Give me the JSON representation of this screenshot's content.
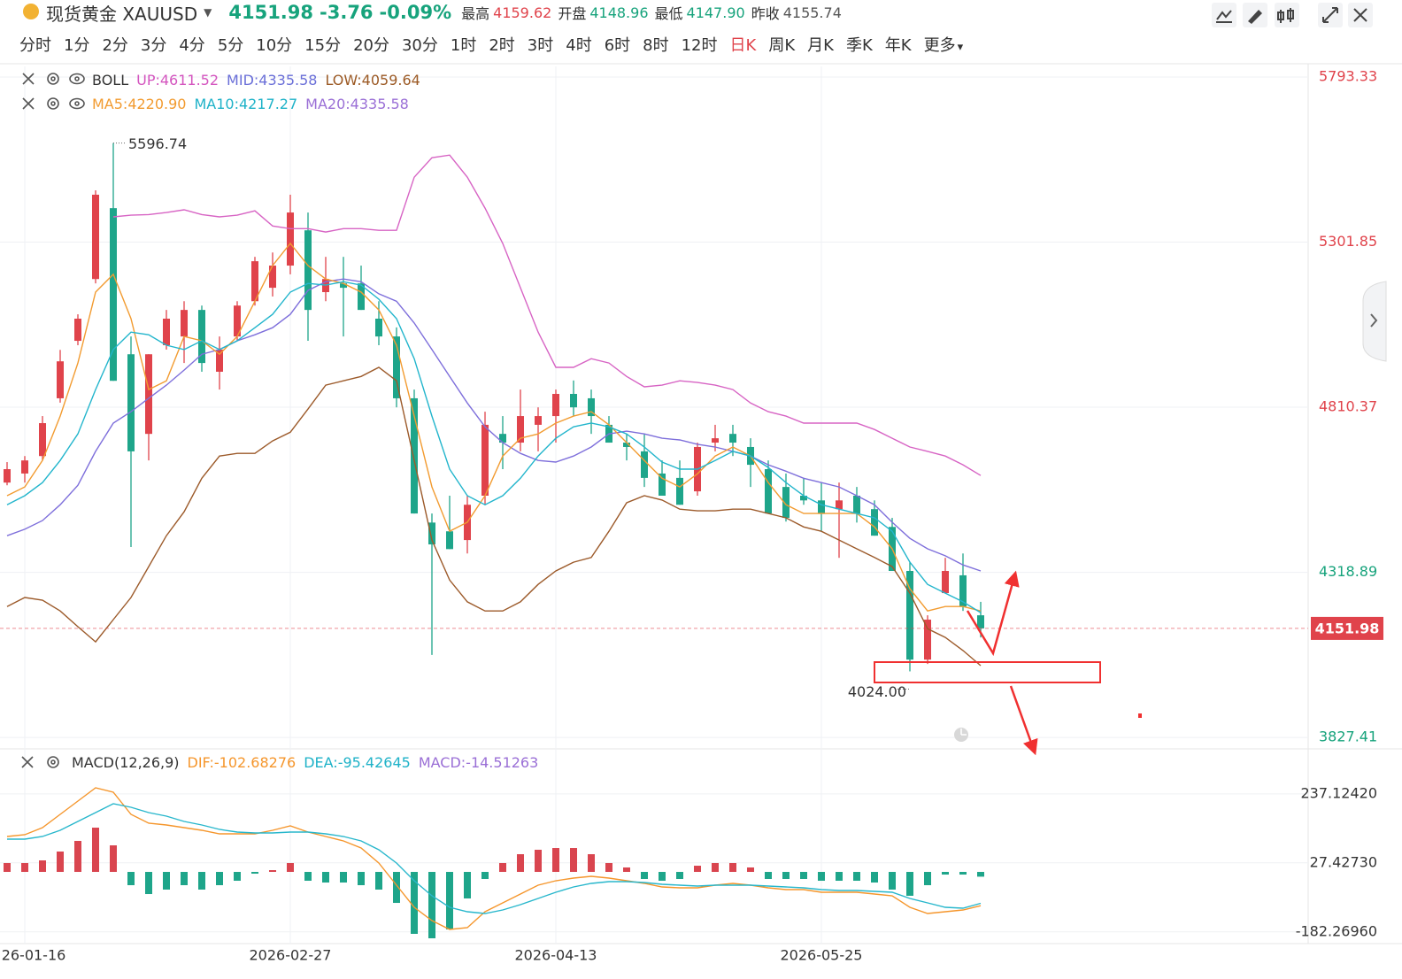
{
  "header": {
    "name": "现货黄金 XAUUSD",
    "price": "4151.98",
    "change": "-3.76",
    "change_pct": "-0.09%",
    "price_color": "#17a37c",
    "stats": [
      {
        "label": "最高",
        "value": "4159.62",
        "color": "#e0434b"
      },
      {
        "label": "开盘",
        "value": "4148.96",
        "color": "#17a37c"
      },
      {
        "label": "最低",
        "value": "4147.90",
        "color": "#17a37c"
      },
      {
        "label": "昨收",
        "value": "4155.74",
        "color": "#555555"
      }
    ]
  },
  "tabs": [
    "分时",
    "1分",
    "2分",
    "3分",
    "4分",
    "5分",
    "10分",
    "15分",
    "20分",
    "30分",
    "1时",
    "2时",
    "3时",
    "4时",
    "6时",
    "8时",
    "12时",
    "日K",
    "周K",
    "月K",
    "季K",
    "年K",
    "更多"
  ],
  "active_tab": 17,
  "active_color": "#e0434b",
  "chart_data": [
    {
      "type": "candlestick",
      "categories": [
        null,
        "26-01-16",
        null,
        null,
        null,
        null,
        null,
        null,
        null,
        null,
        null,
        null,
        null,
        null,
        null,
        null,
        "2026-02-27",
        null,
        null,
        null,
        null,
        null,
        null,
        null,
        null,
        null,
        null,
        null,
        null,
        null,
        null,
        "2026-04-13",
        null,
        null,
        null,
        null,
        null,
        null,
        null,
        null,
        null,
        null,
        null,
        null,
        null,
        null,
        "2026-05-25",
        null,
        null,
        null,
        null,
        null,
        null,
        null,
        null,
        null
      ],
      "open": [
        4586,
        4613,
        4665,
        4837,
        5008,
        5192,
        5403,
        4968,
        4731,
        4995,
        5021,
        5100,
        4916,
        5021,
        5126,
        5166,
        5232,
        5337,
        5153,
        5179,
        5179,
        5074,
        5021,
        4837,
        4467,
        4441,
        4415,
        4547,
        4731,
        4705,
        4758,
        4784,
        4850,
        4837,
        4758,
        4705,
        4679,
        4613,
        4600,
        4560,
        4705,
        4731,
        4692,
        4626,
        4573,
        4547,
        4533,
        4507,
        4547,
        4507,
        4454,
        4323,
        4059,
        4257,
        4310,
        4191
      ],
      "high": [
        4647,
        4665,
        4784,
        4981,
        5087,
        5456,
        5596.74,
        5021,
        4968,
        5100,
        5126,
        5113,
        5021,
        5126,
        5258,
        5271,
        5443,
        5390,
        5258,
        5258,
        5232,
        5126,
        5048,
        4863,
        4494,
        4547,
        4547,
        4797,
        4784,
        4863,
        4810,
        4863,
        4890,
        4863,
        4784,
        4731,
        4731,
        4652,
        4652,
        4705,
        4758,
        4758,
        4718,
        4652,
        4613,
        4600,
        4586,
        4586,
        4573,
        4533,
        4481,
        4349,
        4191,
        4362,
        4375,
        4231
      ],
      "low": [
        4578,
        4586,
        4652,
        4824,
        4995,
        5179,
        4889,
        4394,
        4652,
        4982,
        4942,
        4916,
        4863,
        5008,
        5113,
        5140,
        5206,
        5008,
        5126,
        5021,
        5100,
        4995,
        4810,
        4494,
        4073,
        4388,
        4375,
        4520,
        4626,
        4679,
        4679,
        4705,
        4784,
        4731,
        4705,
        4652,
        4573,
        4547,
        4520,
        4547,
        4679,
        4665,
        4573,
        4494,
        4470,
        4520,
        4441,
        4362,
        4467,
        4428,
        4323,
        4024,
        4046,
        4257,
        4204,
        4125
      ],
      "close": [
        4626,
        4652,
        4763,
        4947,
        5074,
        5443,
        4889,
        4679,
        4968,
        5074,
        5100,
        4942,
        4982,
        5113,
        5245,
        5232,
        5390,
        5100,
        5192,
        5166,
        5100,
        5021,
        4837,
        4494,
        4402,
        4388,
        4520,
        4758,
        4705,
        4784,
        4784,
        4850,
        4810,
        4784,
        4705,
        4692,
        4600,
        4547,
        4520,
        4692,
        4718,
        4705,
        4639,
        4494,
        4481,
        4533,
        4494,
        4533,
        4494,
        4428,
        4323,
        4059,
        4178,
        4323,
        4217,
        4152
      ],
      "up_color": "#e0434b",
      "down_color": "#1ea58a",
      "series": [
        {
          "name": "UP",
          "color": "#d764c4",
          "values": [
            null,
            null,
            null,
            null,
            null,
            null,
            5377,
            5382,
            5384,
            5390,
            5398,
            5384,
            5377,
            5382,
            5395,
            5350,
            5342,
            5342,
            5332,
            5342,
            5342,
            5337,
            5337,
            5495,
            5553,
            5561,
            5495,
            5403,
            5298,
            5166,
            5034,
            4929,
            4929,
            4955,
            4942,
            4902,
            4871,
            4876,
            4889,
            4884,
            4876,
            4863,
            4823,
            4797,
            4784,
            4763,
            4763,
            4763,
            4763,
            4744,
            4718,
            4692,
            4679,
            4665,
            4639,
            4607
          ]
        },
        {
          "name": "MID",
          "color": "#7e6fdb",
          "values": [
            4428,
            4447,
            4473,
            4520,
            4578,
            4679,
            4763,
            4797,
            4837,
            4876,
            4921,
            4968,
            4982,
            5008,
            5026,
            5047,
            5087,
            5158,
            5184,
            5192,
            5184,
            5148,
            5126,
            5061,
            4982,
            4902,
            4823,
            4752,
            4705,
            4673,
            4652,
            4647,
            4665,
            4692,
            4731,
            4739,
            4731,
            4718,
            4713,
            4700,
            4692,
            4679,
            4665,
            4639,
            4620,
            4599,
            4586,
            4573,
            4547,
            4520,
            4468,
            4420,
            4389,
            4368,
            4341,
            4323
          ]
        },
        {
          "name": "LOW",
          "color": "#9c5a2a",
          "values": [
            4217,
            4244,
            4236,
            4204,
            4157,
            4112,
            4178,
            4244,
            4336,
            4428,
            4499,
            4599,
            4665,
            4673,
            4673,
            4710,
            4736,
            4805,
            4876,
            4889,
            4902,
            4929,
            4889,
            4652,
            4415,
            4296,
            4231,
            4204,
            4204,
            4231,
            4283,
            4323,
            4349,
            4363,
            4441,
            4526,
            4547,
            4534,
            4507,
            4502,
            4502,
            4507,
            4507,
            4494,
            4481,
            4454,
            4441,
            4415,
            4389,
            4363,
            4336,
            4257,
            4151,
            4125,
            4086,
            4041
          ]
        },
        {
          "name": "MA5",
          "color": "#f29b30",
          "values": [
            4547,
            4573,
            4652,
            4784,
            4942,
            5153,
            5206,
            5074,
            4863,
            4889,
            5021,
            5008,
            4968,
            5021,
            5126,
            5232,
            5298,
            5232,
            5192,
            5179,
            5153,
            5100,
            4995,
            4784,
            4573,
            4441,
            4468,
            4547,
            4665,
            4718,
            4731,
            4763,
            4784,
            4797,
            4758,
            4705,
            4652,
            4599,
            4573,
            4612,
            4665,
            4692,
            4665,
            4586,
            4520,
            4494,
            4494,
            4494,
            4494,
            4454,
            4389,
            4270,
            4204,
            4217,
            4217,
            4204
          ]
        },
        {
          "name": "MA10",
          "color": "#22b5cc",
          "values": [
            4520,
            4547,
            4586,
            4652,
            4731,
            4863,
            4982,
            5034,
            5026,
            4995,
            4982,
            5008,
            4982,
            5008,
            5047,
            5087,
            5153,
            5179,
            5174,
            5184,
            5174,
            5132,
            5074,
            4955,
            4784,
            4626,
            4547,
            4520,
            4547,
            4599,
            4665,
            4718,
            4752,
            4763,
            4752,
            4731,
            4692,
            4647,
            4626,
            4626,
            4652,
            4679,
            4665,
            4631,
            4586,
            4547,
            4520,
            4507,
            4494,
            4481,
            4441,
            4349,
            4283,
            4257,
            4231,
            4199
          ]
        }
      ],
      "legend_rows": [
        {
          "items": [
            {
              "text": "BOLL",
              "color": "#333333"
            },
            {
              "text": "UP:4611.52",
              "color": "#d455bf"
            },
            {
              "text": "MID:4335.58",
              "color": "#6a6fd8"
            },
            {
              "text": "LOW:4059.64",
              "color": "#9c5a25"
            }
          ]
        },
        {
          "items": [
            {
              "text": "MA5:4220.90",
              "color": "#f29b30"
            },
            {
              "text": "MA10:4217.27",
              "color": "#1eb2c8"
            },
            {
              "text": "MA20:4335.58",
              "color": "#9a6fd6"
            }
          ]
        }
      ],
      "min_label": "4024.00",
      "price_line": 4151.98,
      "price_line_color": "#e0434b",
      "ylim": [
        3796,
        5825
      ],
      "yticks": [
        5793.33,
        5301.85,
        4810.37,
        4318.89,
        3827.41
      ],
      "ytick_colors": [
        "#e0434b",
        "#e0434b",
        "#e0434b",
        "#17a37c",
        "#17a37c"
      ],
      "grid": true
    },
    {
      "type": "macd",
      "title": "MACD(12,26,9)",
      "series": [
        {
          "name": "DIF",
          "color": "#f5962c",
          "values": [
            107.6,
            113.0,
            134.5,
            174.9,
            215.2,
            255.6,
            242.1,
            174.9,
            148.0,
            142.6,
            134.5,
            126.4,
            115.7,
            115.7,
            115.7,
            126.4,
            139.9,
            121.1,
            107.6,
            94.2,
            72.6,
            26.9,
            -40.4,
            -107.6,
            -148.0,
            -174.9,
            -169.5,
            -121.1,
            -94.2,
            -67.3,
            -40.4,
            -26.9,
            -18.8,
            -13.5,
            -18.8,
            -26.9,
            -35.0,
            -45.7,
            -48.4,
            -48.4,
            -40.4,
            -35.0,
            -40.4,
            -48.4,
            -53.8,
            -53.8,
            -61.9,
            -61.9,
            -61.9,
            -67.3,
            -72.6,
            -107.6,
            -126.4,
            -121.1,
            -115.7,
            -102.68
          ]
        },
        {
          "name": "DEA",
          "color": "#28b7cc",
          "values": [
            99.5,
            99.5,
            107.6,
            126.4,
            153.3,
            180.2,
            207.1,
            196.4,
            180.2,
            169.5,
            153.3,
            142.6,
            129.1,
            121.1,
            118.4,
            118.4,
            121.1,
            121.1,
            115.7,
            107.6,
            94.2,
            67.3,
            26.9,
            -26.9,
            -72.6,
            -107.6,
            -121.1,
            -126.4,
            -115.7,
            -99.5,
            -80.7,
            -61.9,
            -45.7,
            -35.0,
            -29.6,
            -29.6,
            -32.3,
            -37.7,
            -40.4,
            -43.0,
            -40.4,
            -40.4,
            -40.4,
            -43.0,
            -45.7,
            -48.4,
            -53.8,
            -56.5,
            -56.5,
            -59.2,
            -61.9,
            -80.7,
            -94.2,
            -107.6,
            -110.3,
            -95.43
          ]
        }
      ],
      "histogram": {
        "values": [
          26.9,
          26.9,
          35.0,
          61.9,
          94.2,
          134.5,
          80.7,
          -40.4,
          -67.3,
          -53.8,
          -40.4,
          -53.8,
          -40.4,
          -26.9,
          -5.4,
          5.4,
          26.9,
          -26.9,
          -32.3,
          -32.3,
          -40.4,
          -53.8,
          -94.2,
          -188.3,
          -201.8,
          -174.9,
          -80.7,
          -21.5,
          26.9,
          53.8,
          67.3,
          72.6,
          72.6,
          53.8,
          26.9,
          13.5,
          -21.5,
          -26.9,
          -21.5,
          18.8,
          26.9,
          26.9,
          13.5,
          -21.5,
          -21.5,
          -21.5,
          -26.9,
          -26.9,
          -26.9,
          -32.3,
          -53.8,
          -72.6,
          -40.4,
          -8.1,
          -8.1,
          -14.51
        ],
        "up_color": "#d9454f",
        "down_color": "#1ea58a"
      },
      "legend_rows": [
        {
          "items": [
            {
              "text": "DIF:-102.68276",
              "color": "#f5962c"
            },
            {
              "text": "DEA:-95.42645",
              "color": "#1eb2c8"
            },
            {
              "text": "MACD:-14.51263",
              "color": "#9a6fd6"
            }
          ]
        }
      ],
      "ylim": [
        -215.2,
        363.2
      ],
      "yticks": [
        {
          "value": 237.1242,
          "label": "237.12420"
        },
        {
          "value": 27.4273,
          "label": "27.42730"
        },
        {
          "value": -182.2696,
          "label": "-182.26960"
        }
      ],
      "grid": true
    }
  ]
}
